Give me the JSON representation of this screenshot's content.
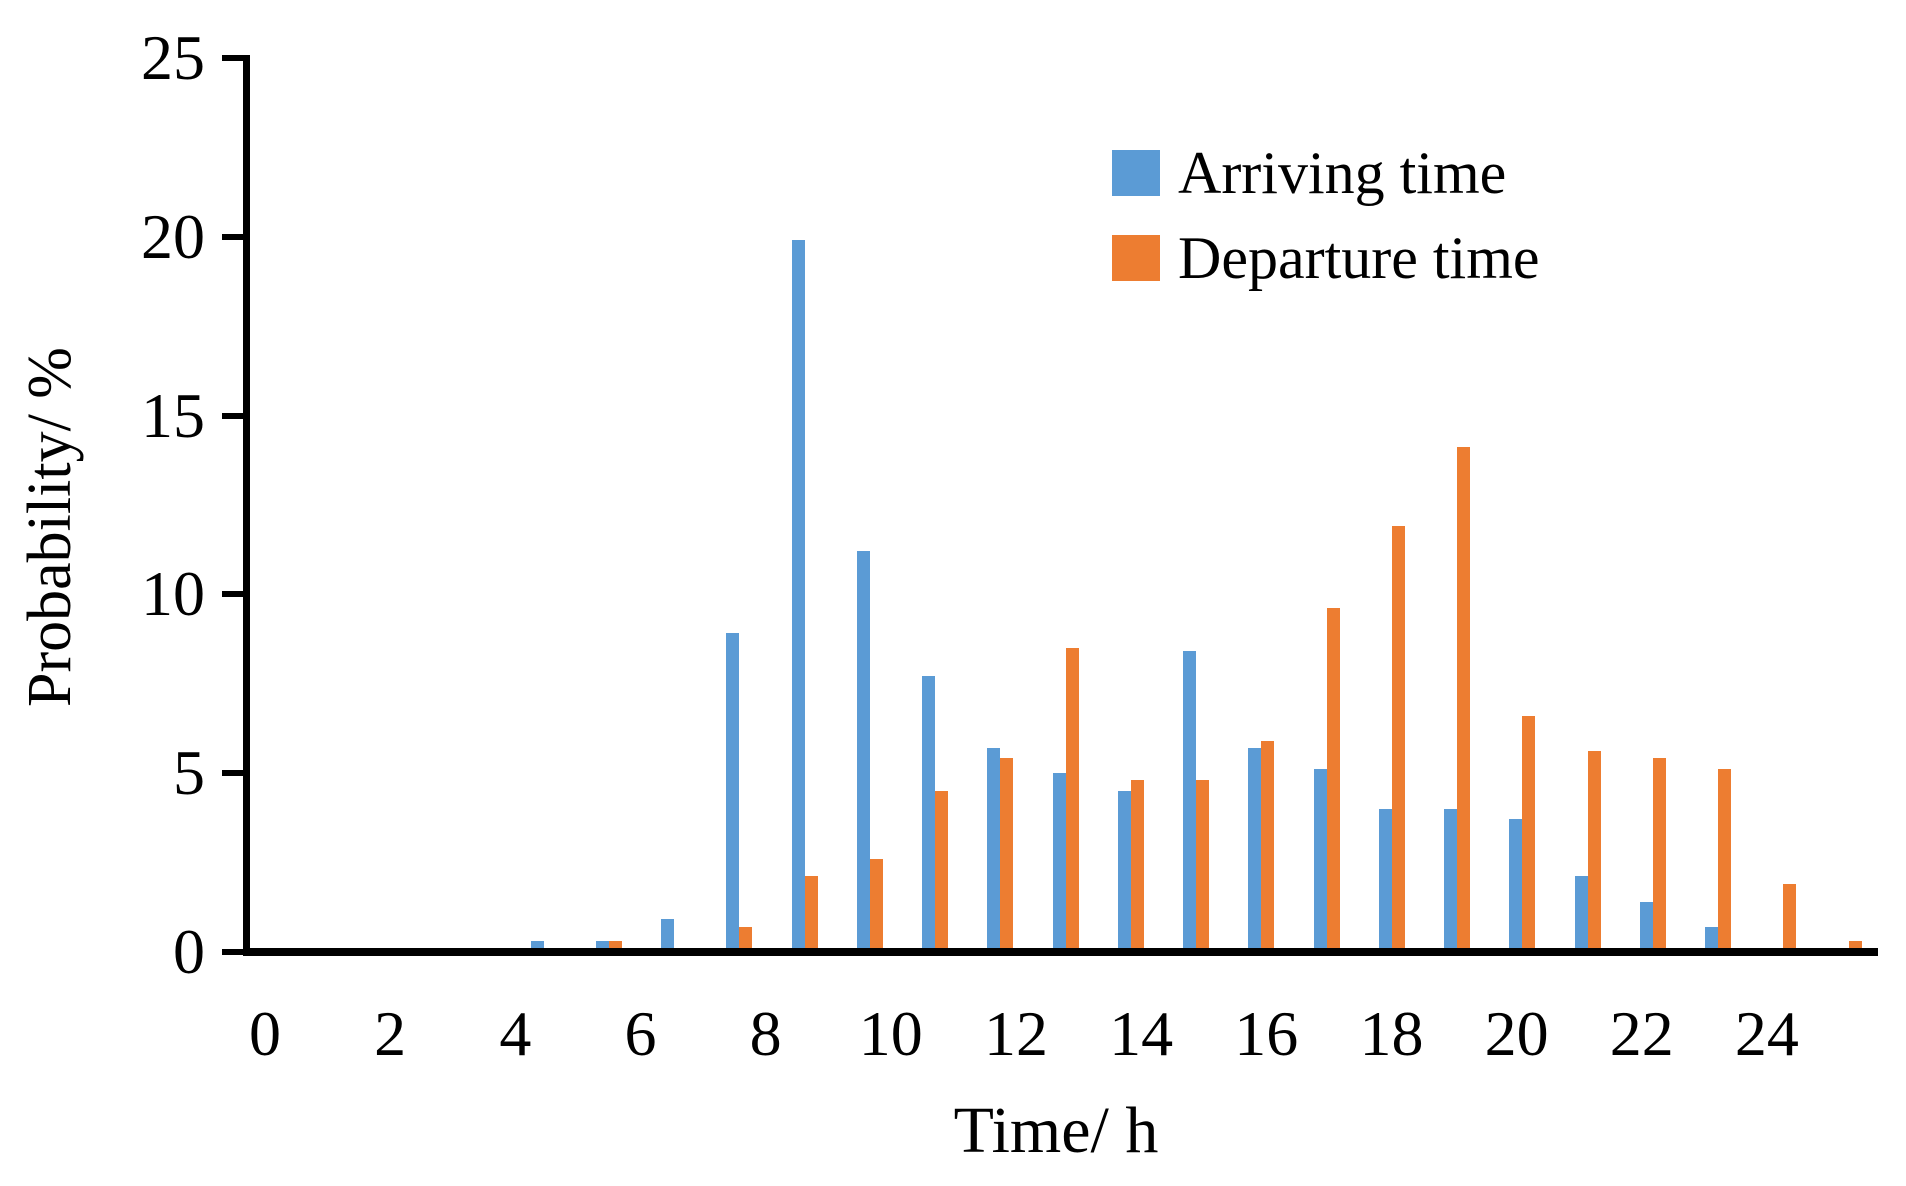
{
  "chart_data": {
    "type": "bar",
    "title": "",
    "xlabel": "Time/ h",
    "ylabel": "Probability/ %",
    "categories": [
      0,
      1,
      2,
      3,
      4,
      5,
      6,
      7,
      8,
      9,
      10,
      11,
      12,
      13,
      14,
      15,
      16,
      17,
      18,
      19,
      20,
      21,
      22,
      23,
      24
    ],
    "series": [
      {
        "name": "Arriving time",
        "color": "#5B9BD5",
        "values": [
          0,
          0,
          0,
          0,
          0.2,
          0.2,
          0.8,
          8.8,
          19.8,
          11.1,
          7.6,
          5.6,
          4.9,
          4.4,
          8.3,
          5.6,
          5.0,
          3.9,
          3.9,
          3.6,
          2.0,
          1.3,
          0.6,
          0,
          0
        ]
      },
      {
        "name": "Departure time",
        "color": "#ED7D31",
        "values": [
          0,
          0,
          0,
          0,
          0,
          0.2,
          0,
          0.6,
          2.0,
          2.5,
          4.4,
          5.3,
          8.4,
          4.7,
          4.7,
          5.8,
          9.5,
          11.8,
          14.0,
          6.5,
          5.5,
          5.3,
          5.0,
          1.8,
          0.2
        ]
      }
    ],
    "ylim": [
      0,
      25
    ],
    "yticks": [
      25,
      20,
      15,
      10,
      5,
      0
    ],
    "xtick_hours": [
      0,
      2,
      4,
      6,
      8,
      10,
      12,
      14,
      16,
      18,
      20,
      22,
      24
    ],
    "xtick_labels": [
      "0",
      "2",
      "4",
      "6",
      "8",
      "10",
      "12",
      "14",
      "16",
      "18",
      "20",
      "22",
      "24"
    ],
    "legend_position": "upper right",
    "grid": false,
    "axis_color": "#000000"
  }
}
